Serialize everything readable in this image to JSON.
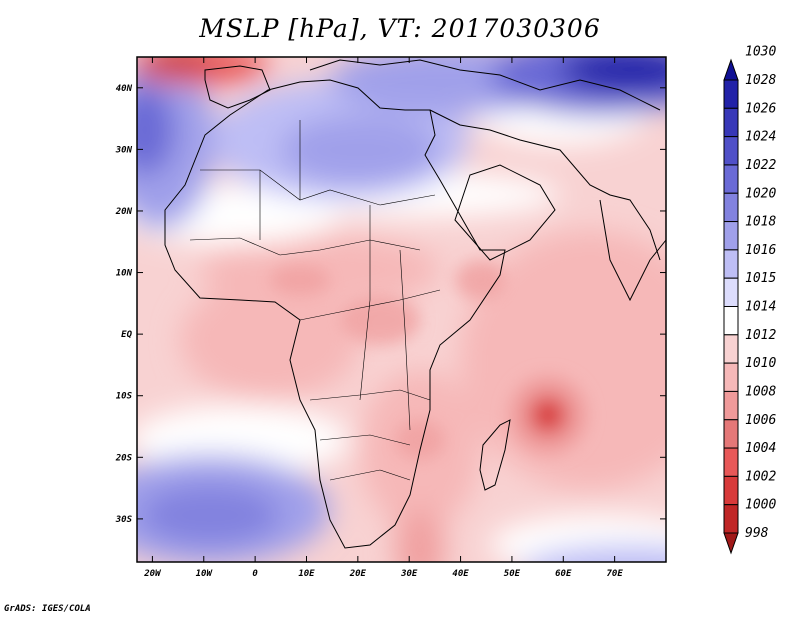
{
  "title": "MSLP [hPa], VT: 2017030306",
  "credit": "GrADS: IGES/COLA",
  "map": {
    "lon_range": [
      -23,
      80
    ],
    "lat_range": [
      -37,
      45
    ],
    "lon_ticks": [
      {
        "value": -20,
        "label": "20W"
      },
      {
        "value": -10,
        "label": "10W"
      },
      {
        "value": 0,
        "label": "0"
      },
      {
        "value": 10,
        "label": "10E"
      },
      {
        "value": 20,
        "label": "20E"
      },
      {
        "value": 30,
        "label": "30E"
      },
      {
        "value": 40,
        "label": "40E"
      },
      {
        "value": 50,
        "label": "50E"
      },
      {
        "value": 60,
        "label": "60E"
      },
      {
        "value": 70,
        "label": "70E"
      }
    ],
    "lat_ticks": [
      {
        "value": 40,
        "label": "40N"
      },
      {
        "value": 30,
        "label": "30N"
      },
      {
        "value": 20,
        "label": "20N"
      },
      {
        "value": 10,
        "label": "10N"
      },
      {
        "value": 0,
        "label": "EQ"
      },
      {
        "value": -10,
        "label": "10S"
      },
      {
        "value": -20,
        "label": "20S"
      },
      {
        "value": -30,
        "label": "30S"
      }
    ]
  },
  "colorbar": {
    "levels": [
      "998",
      "1000",
      "1002",
      "1004",
      "1006",
      "1008",
      "1010",
      "1012",
      "1014",
      "1015",
      "1016",
      "1018",
      "1020",
      "1022",
      "1024",
      "1026",
      "1028",
      "1030"
    ],
    "colors": [
      "#a01818",
      "#c02626",
      "#d83a3a",
      "#e85858",
      "#e57878",
      "#f09a9a",
      "#f6b8b8",
      "#f8d2d2",
      "#ffffff",
      "#dcdcfc",
      "#bebef5",
      "#a0a0ea",
      "#8282df",
      "#6a6ad6",
      "#5050c8",
      "#3838b8",
      "#2222a8",
      "#101094"
    ]
  }
}
